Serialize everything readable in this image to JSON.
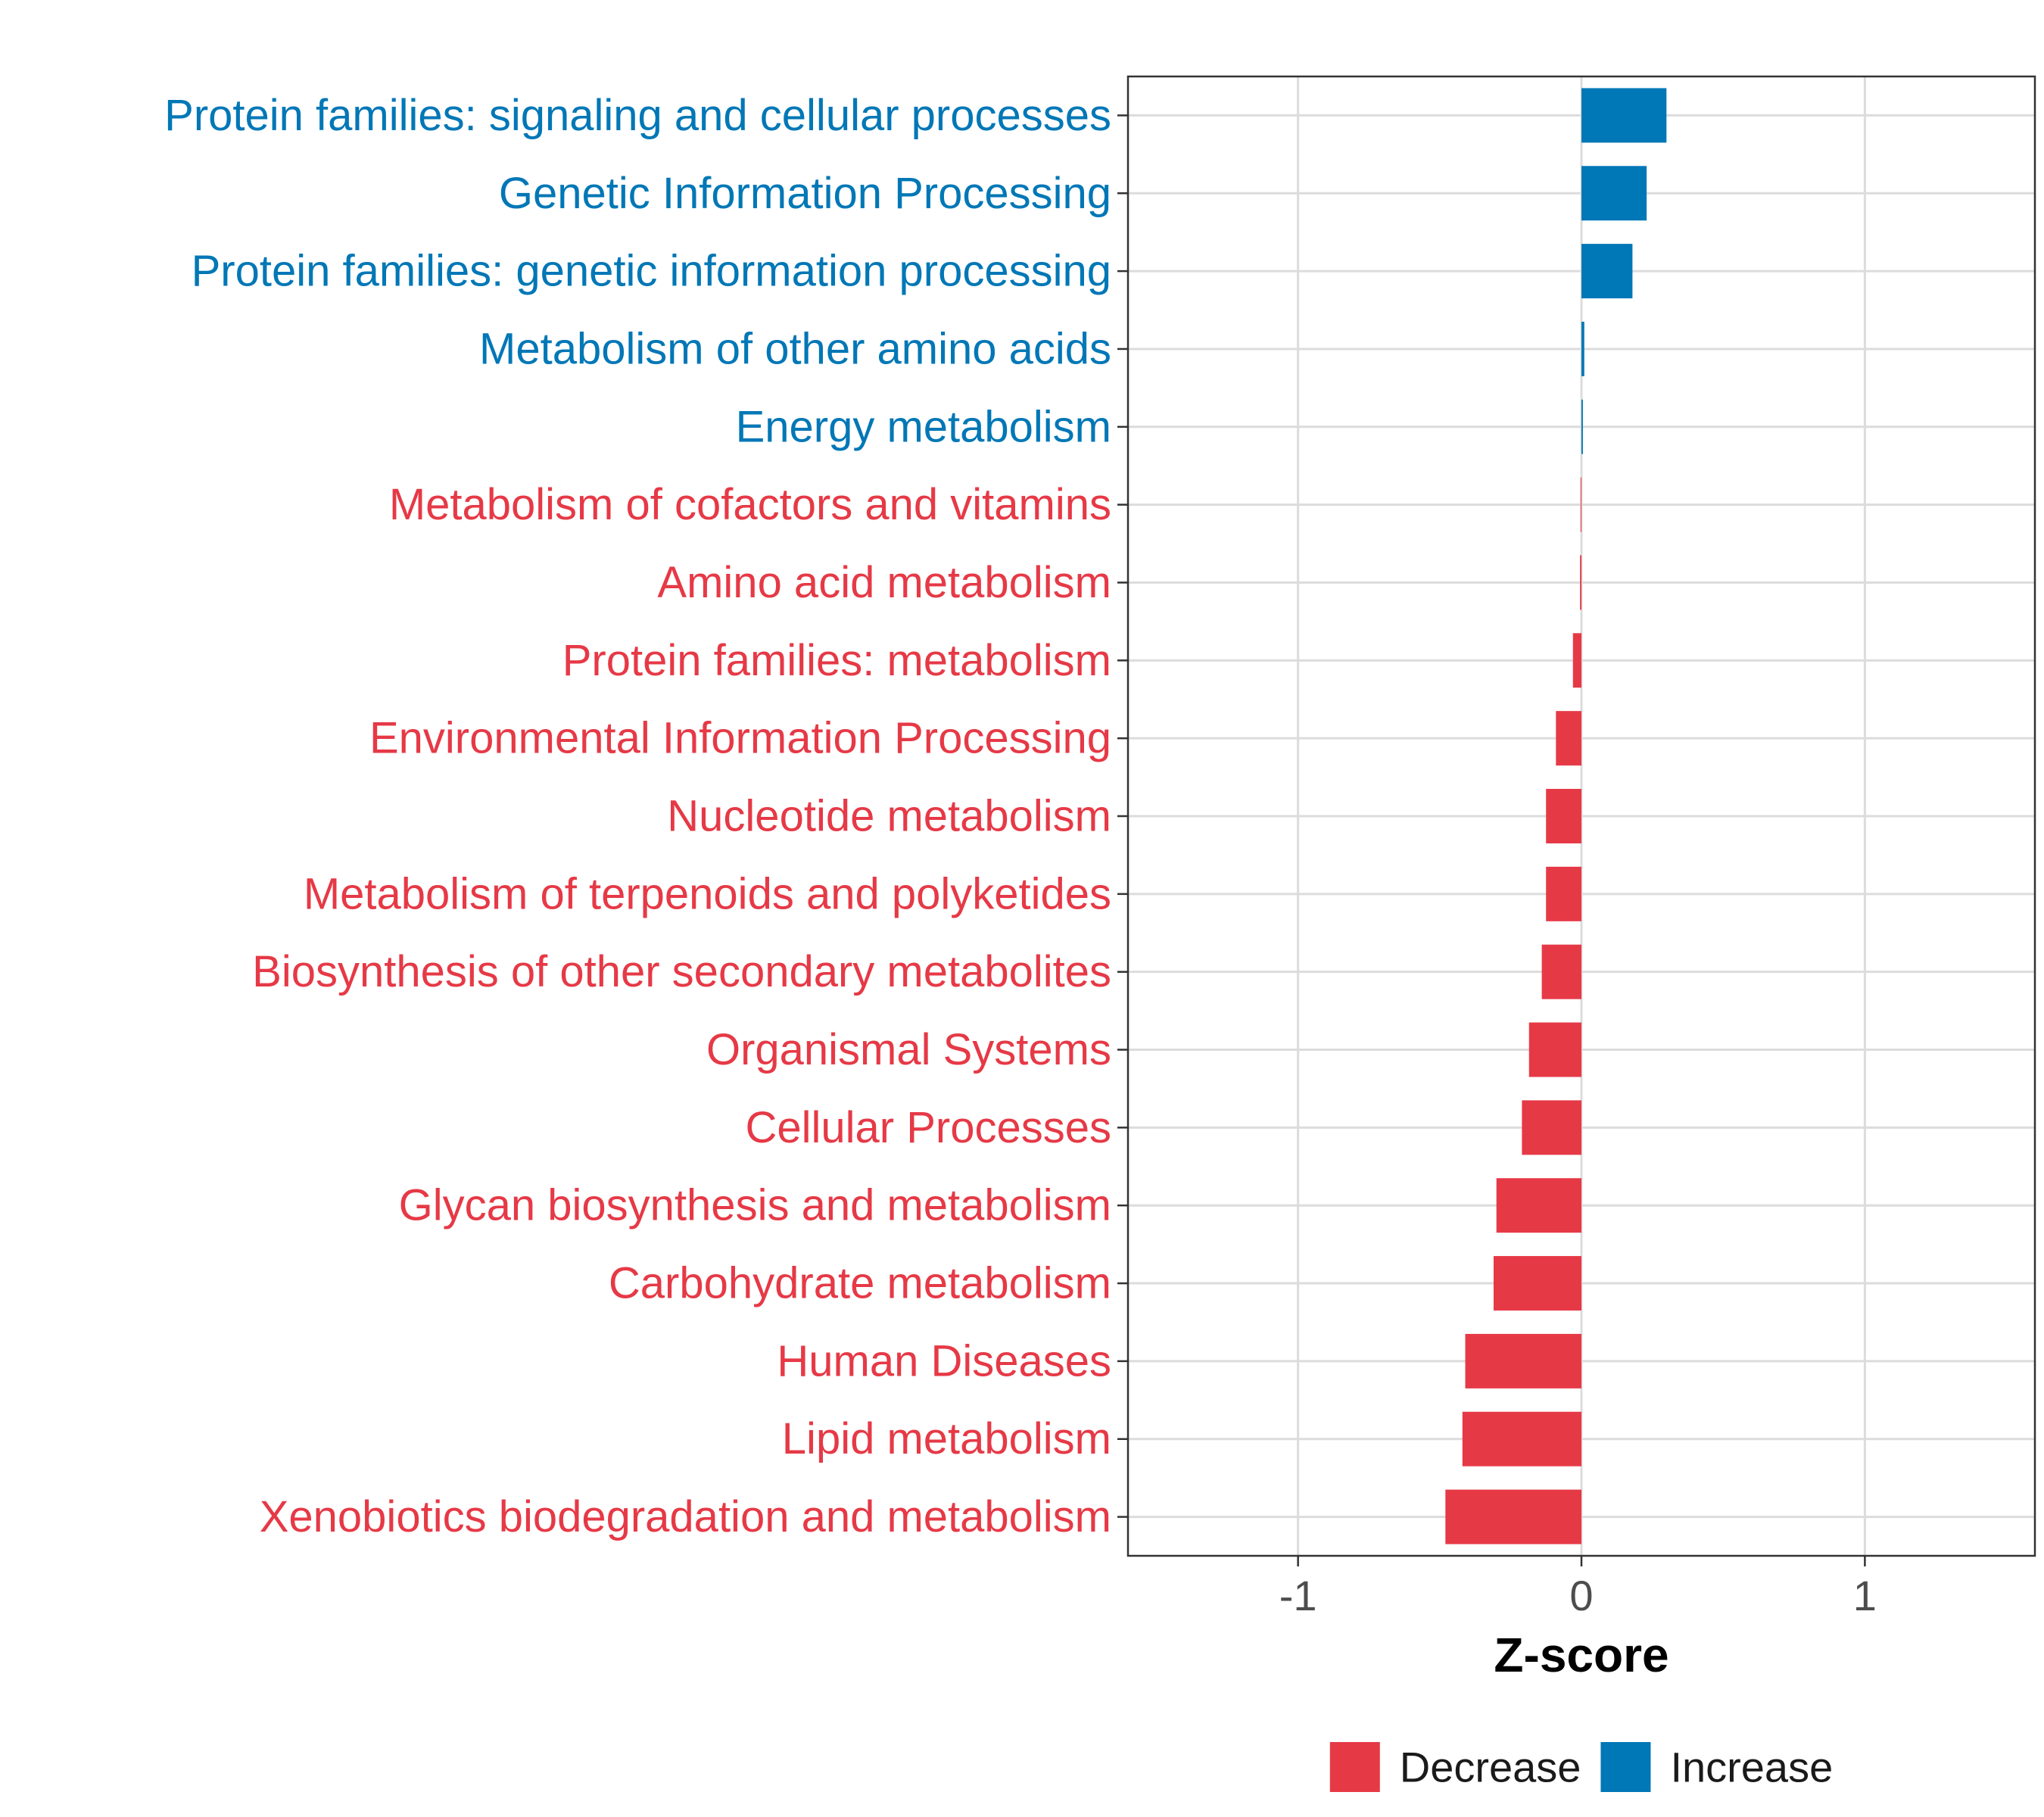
{
  "chart_data": {
    "type": "bar",
    "orientation": "horizontal",
    "xlabel": "Z-score",
    "xlim": [
      -1.6,
      1.6
    ],
    "xticks": [
      -1,
      0,
      1
    ],
    "xtick_labels": [
      "-1",
      "0",
      "1"
    ],
    "grid": true,
    "legend_position": "bottom",
    "colors": {
      "Decrease": "#e63946",
      "Increase": "#0077b6"
    },
    "legend": [
      {
        "name": "Decrease",
        "color": "#e63946"
      },
      {
        "name": "Increase",
        "color": "#0077b6"
      }
    ],
    "categories": [
      "Protein families: signaling and cellular processes",
      "Genetic Information Processing",
      "Protein families: genetic information processing",
      "Metabolism of other amino acids",
      "Energy metabolism",
      "Metabolism of cofactors and vitamins",
      "Amino acid metabolism",
      "Protein families: metabolism",
      "Environmental Information Processing",
      "Nucleotide metabolism",
      "Metabolism of terpenoids and polyketides",
      "Biosynthesis of other secondary metabolites",
      "Organismal Systems",
      "Cellular Processes",
      "Glycan biosynthesis and metabolism",
      "Carbohydrate metabolism",
      "Human Diseases",
      "Lipid metabolism",
      "Xenobiotics biodegradation and metabolism"
    ],
    "values": [
      0.3,
      0.23,
      0.18,
      0.01,
      0.005,
      -0.003,
      -0.005,
      -0.03,
      -0.09,
      -0.125,
      -0.125,
      -0.14,
      -0.185,
      -0.21,
      -0.3,
      -0.31,
      -0.41,
      -0.42,
      -0.48
    ],
    "groups": [
      "Increase",
      "Increase",
      "Increase",
      "Increase",
      "Increase",
      "Decrease",
      "Decrease",
      "Decrease",
      "Decrease",
      "Decrease",
      "Decrease",
      "Decrease",
      "Decrease",
      "Decrease",
      "Decrease",
      "Decrease",
      "Decrease",
      "Decrease",
      "Decrease"
    ]
  }
}
